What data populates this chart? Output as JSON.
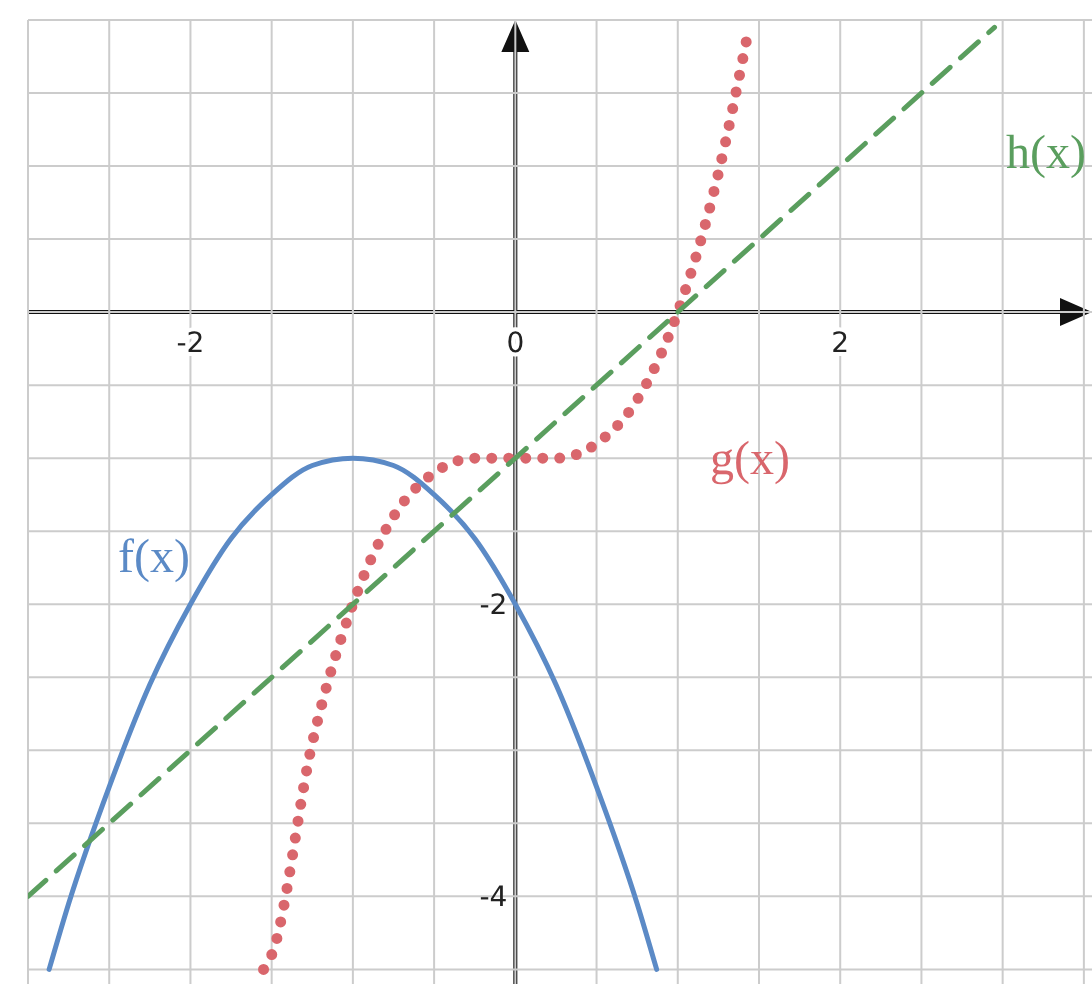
{
  "chart_data": {
    "type": "line",
    "xlim": [
      -3,
      3.55
    ],
    "ylim": [
      -4.6,
      2
    ],
    "xticks": [
      {
        "value": -3,
        "label": null
      },
      {
        "value": -2.5,
        "label": null
      },
      -2,
      {
        "value": -1.5,
        "label": null
      },
      {
        "value": -1,
        "label": null
      },
      {
        "value": -0.5,
        "label": null
      },
      0,
      {
        "value": 0.5,
        "label": null
      },
      {
        "value": 1,
        "label": null
      },
      {
        "value": 1.5,
        "label": null
      },
      2,
      {
        "value": 2.5,
        "label": null
      },
      {
        "value": 3,
        "label": null
      },
      {
        "value": 3.5,
        "label": null
      }
    ],
    "yticks": [
      {
        "value": -4.5,
        "label": null
      },
      -4,
      {
        "value": -3.5,
        "label": null
      },
      {
        "value": -3,
        "label": null
      },
      {
        "value": -2.5,
        "label": null
      },
      -2,
      {
        "value": -1.5,
        "label": null
      },
      {
        "value": -1,
        "label": null
      },
      {
        "value": -0.5,
        "label": null
      },
      {
        "value": 0,
        "label": null
      },
      {
        "value": 0.5,
        "label": null
      },
      {
        "value": 1,
        "label": null
      },
      {
        "value": 1.5,
        "label": null
      },
      {
        "value": 2,
        "label": null
      }
    ],
    "grid": true,
    "series": [
      {
        "name": "f(x)",
        "color": "#5b8ac6",
        "line_style": "solid",
        "x": [
          -2.87,
          -2.75,
          -2.5,
          -2.25,
          -2,
          -1.75,
          -1.5,
          -1.25,
          -1,
          -0.75,
          -0.5,
          -0.25,
          0,
          0.25,
          0.5,
          0.75,
          0.87
        ],
        "values": [
          -4.5,
          -4.05,
          -3.25,
          -2.55,
          -2,
          -1.55,
          -1.25,
          -1.05,
          -1,
          -1.05,
          -1.25,
          -1.55,
          -2,
          -2.55,
          -3.25,
          -4.05,
          -4.5
        ]
      },
      {
        "name": "g(x)",
        "color": "#d9666c",
        "line_style": "dotted",
        "x": [
          -1.55,
          -1.5,
          -1.25,
          -1,
          -0.75,
          -0.5,
          -0.25,
          0,
          0.25,
          0.5,
          0.75,
          1,
          1.25,
          1.43
        ],
        "values": [
          -4.5,
          -4.4,
          -2.95,
          -2,
          -1.4,
          -1.1,
          -1.0,
          -1,
          -1.0,
          -0.9,
          -0.6,
          0,
          0.95,
          1.9
        ]
      },
      {
        "name": "h(x)",
        "color": "#5a9e5e",
        "line_style": "dashed",
        "x": [
          -3,
          2.95
        ],
        "values": [
          -4,
          1.95
        ]
      }
    ]
  }
}
